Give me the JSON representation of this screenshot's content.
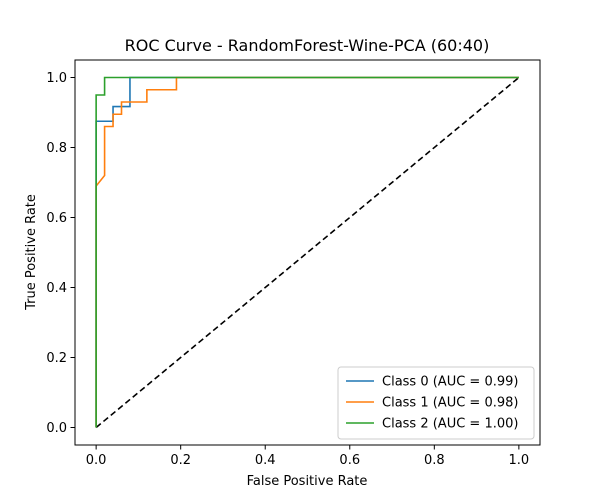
{
  "chart_data": {
    "type": "line",
    "title": "ROC Curve - RandomForest-Wine-PCA (60:40)",
    "xlabel": "False Positive Rate",
    "ylabel": "True Positive Rate",
    "xlim": [
      -0.05,
      1.05
    ],
    "ylim": [
      -0.05,
      1.05
    ],
    "xticks": [
      0.0,
      0.2,
      0.4,
      0.6,
      0.8,
      1.0
    ],
    "yticks": [
      0.0,
      0.2,
      0.4,
      0.6,
      0.8,
      1.0
    ],
    "xtick_labels": [
      "0.0",
      "0.2",
      "0.4",
      "0.6",
      "0.8",
      "1.0"
    ],
    "ytick_labels": [
      "0.0",
      "0.2",
      "0.4",
      "0.6",
      "0.8",
      "1.0"
    ],
    "grid": false,
    "legend_position": "lower-right",
    "series": [
      {
        "name": "Class 0 (AUC = 0.99)",
        "color": "#1f77b4",
        "x": [
          0.0,
          0.0,
          0.04,
          0.04,
          0.08,
          0.08,
          1.0
        ],
        "y": [
          0.0,
          0.875,
          0.875,
          0.917,
          0.917,
          1.0,
          1.0
        ]
      },
      {
        "name": "Class 1 (AUC = 0.98)",
        "color": "#ff7f0e",
        "x": [
          0.0,
          0.0,
          0.02,
          0.02,
          0.04,
          0.04,
          0.06,
          0.06,
          0.08,
          0.08,
          0.12,
          0.12,
          0.19,
          0.19,
          1.0
        ],
        "y": [
          0.0,
          0.69,
          0.72,
          0.86,
          0.86,
          0.895,
          0.895,
          0.93,
          0.93,
          0.93,
          0.93,
          0.965,
          0.965,
          1.0,
          1.0
        ]
      },
      {
        "name": "Class 2 (AUC = 1.00)",
        "color": "#2ca02c",
        "x": [
          0.0,
          0.0,
          0.02,
          0.02,
          1.0
        ],
        "y": [
          0.0,
          0.95,
          0.95,
          1.0,
          1.0
        ]
      }
    ],
    "reference_line": {
      "color": "#000000",
      "style": "dashed",
      "x": [
        0.0,
        1.0
      ],
      "y": [
        0.0,
        1.0
      ]
    }
  }
}
